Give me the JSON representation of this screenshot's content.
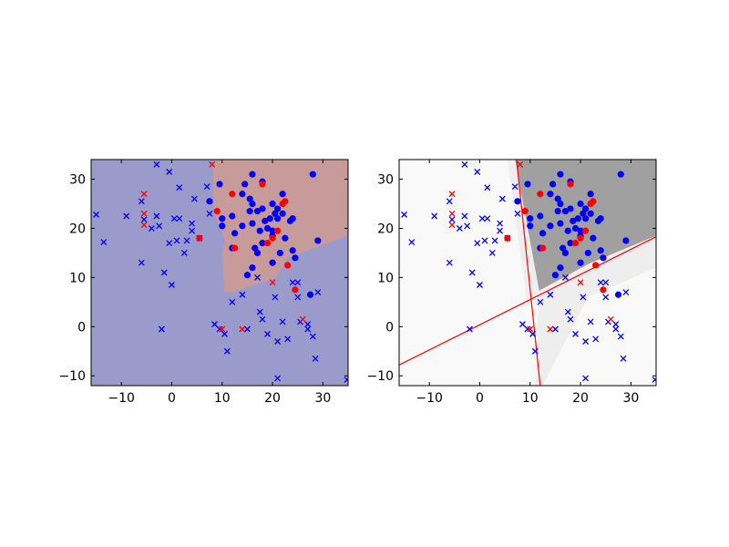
{
  "chart_data": [
    {
      "type": "scatter",
      "panel": "left",
      "xlim": [
        -16,
        35
      ],
      "ylim": [
        -12,
        34
      ],
      "xticks": [
        -10,
        0,
        10,
        20,
        30
      ],
      "yticks": [
        -10,
        0,
        10,
        20,
        30
      ],
      "xtick_labels": [
        "−10",
        "0",
        "10",
        "20",
        "30"
      ],
      "ytick_labels": [
        "−10",
        "0",
        "10",
        "20",
        "30"
      ],
      "background_color": "#9b9bcb",
      "region_color": "#c89b9b",
      "region": [
        [
          10,
          34
        ],
        [
          35,
          34
        ],
        [
          35,
          18.5
        ],
        [
          23,
          14
        ],
        [
          20.7,
          10
        ],
        [
          12,
          7
        ],
        [
          10.5,
          7
        ],
        [
          10,
          15
        ],
        [
          10.6,
          17.5
        ],
        [
          8.3,
          23.6
        ],
        [
          8.2,
          33.5
        ]
      ],
      "grid": false,
      "series": [
        {
          "marker": "x",
          "color": "#0000ff",
          "points": [
            [
              -15,
              22.8
            ],
            [
              -13.5,
              17.2
            ],
            [
              -9,
              22.5
            ],
            [
              -6,
              25.5
            ],
            [
              -6,
              13
            ],
            [
              -5.5,
              21.8
            ],
            [
              -4,
              20
            ],
            [
              -3,
              33
            ],
            [
              -3,
              22.5
            ],
            [
              -2.5,
              20.5
            ],
            [
              -2,
              -0.5
            ],
            [
              -1.5,
              11
            ],
            [
              -0.5,
              31.5
            ],
            [
              -0.5,
              17
            ],
            [
              0,
              8.5
            ],
            [
              0.5,
              22
            ],
            [
              1,
              17.5
            ],
            [
              1.5,
              28.3
            ],
            [
              1.5,
              22
            ],
            [
              2.5,
              15
            ],
            [
              3,
              17.5
            ],
            [
              4,
              21
            ],
            [
              4,
              19.5
            ],
            [
              4.5,
              26
            ],
            [
              5.5,
              18
            ],
            [
              7,
              28.5
            ],
            [
              7.5,
              23
            ],
            [
              8.5,
              0.5
            ],
            [
              9.5,
              -0.5
            ],
            [
              10.5,
              -1.5
            ],
            [
              11,
              -5
            ],
            [
              12,
              5
            ],
            [
              14,
              6.5
            ],
            [
              15,
              -0.5
            ],
            [
              17,
              10
            ],
            [
              17.5,
              3
            ],
            [
              18,
              1.5
            ],
            [
              19,
              -1.5
            ],
            [
              20.5,
              6
            ],
            [
              21,
              -3
            ],
            [
              21,
              -10.5
            ],
            [
              22,
              1
            ],
            [
              23,
              -2.5
            ],
            [
              24,
              9
            ],
            [
              25,
              9
            ],
            [
              25,
              6
            ],
            [
              25.5,
              1
            ],
            [
              27,
              0.5
            ],
            [
              27,
              -0.5
            ],
            [
              28,
              -2
            ],
            [
              28.5,
              -6.5
            ],
            [
              29,
              7
            ],
            [
              34.8,
              -10.8
            ]
          ]
        },
        {
          "marker": "x",
          "color": "#ff0000",
          "points": [
            [
              -5.5,
              27
            ],
            [
              -5.5,
              23
            ],
            [
              -5.5,
              20.7
            ],
            [
              8,
              33
            ],
            [
              10,
              -0.5
            ],
            [
              14,
              -0.5
            ],
            [
              20,
              9
            ],
            [
              26,
              1.5
            ]
          ]
        },
        {
          "marker": "o",
          "color": "#0000ff",
          "points": [
            [
              7.5,
              25.5
            ],
            [
              9.5,
              29
            ],
            [
              10,
              22
            ],
            [
              10,
              20.5
            ],
            [
              12,
              22.5
            ],
            [
              12,
              16
            ],
            [
              12.5,
              19
            ],
            [
              14,
              20.5
            ],
            [
              14,
              27
            ],
            [
              14.5,
              29
            ],
            [
              15,
              10.5
            ],
            [
              15.5,
              26
            ],
            [
              15.5,
              23.5
            ],
            [
              16,
              31
            ],
            [
              16,
              25
            ],
            [
              16,
              21
            ],
            [
              16,
              12
            ],
            [
              16.5,
              16
            ],
            [
              17,
              15
            ],
            [
              17,
              23.5
            ],
            [
              17.5,
              19.5
            ],
            [
              18,
              29.5
            ],
            [
              18,
              24
            ],
            [
              18,
              17
            ],
            [
              18.5,
              21.5
            ],
            [
              19,
              20
            ],
            [
              19.5,
              22
            ],
            [
              20,
              18.5
            ],
            [
              20,
              25
            ],
            [
              20,
              19.5
            ],
            [
              20,
              13
            ],
            [
              20.5,
              23
            ],
            [
              21,
              24
            ],
            [
              21,
              22
            ],
            [
              21.5,
              15
            ],
            [
              22,
              27
            ],
            [
              22,
              23
            ],
            [
              22.5,
              18
            ],
            [
              23.5,
              21.5
            ],
            [
              24,
              15.5
            ],
            [
              24,
              22
            ],
            [
              24.5,
              14
            ],
            [
              27.5,
              6.5
            ],
            [
              28,
              31
            ],
            [
              29,
              17.5
            ]
          ]
        },
        {
          "marker": "o",
          "color": "#ff0000",
          "points": [
            [
              5.5,
              18
            ],
            [
              9,
              23.5
            ],
            [
              12,
              27
            ],
            [
              12.5,
              16
            ],
            [
              18,
              29
            ],
            [
              19,
              17
            ],
            [
              20,
              18
            ],
            [
              21,
              19.5
            ],
            [
              22,
              25
            ],
            [
              22.5,
              25.5
            ],
            [
              23,
              12.5
            ],
            [
              24.5,
              7.5
            ]
          ]
        }
      ]
    },
    {
      "type": "scatter",
      "panel": "right",
      "xlim": [
        -16,
        35
      ],
      "ylim": [
        -12,
        34
      ],
      "xticks": [
        -10,
        0,
        10,
        20,
        30
      ],
      "yticks": [
        -10,
        0,
        10,
        20,
        30
      ],
      "xtick_labels": [
        "−10",
        "0",
        "10",
        "20",
        "30"
      ],
      "ytick_labels": [
        "−10",
        "0",
        "10",
        "20",
        "30"
      ],
      "background_color": "#f9f9f9",
      "dark_region_color": "#a0a0a0",
      "dark_region": [
        [
          7,
          34
        ],
        [
          35,
          34
        ],
        [
          35,
          18.5
        ],
        [
          21.5,
          12.7
        ],
        [
          11.8,
          7.3
        ]
      ],
      "boundary_color": "#ff0000",
      "lines": [
        [
          [
            7.3,
            34
          ],
          [
            12,
            -12
          ]
        ],
        [
          [
            -16,
            -7.8
          ],
          [
            35,
            18.3
          ]
        ]
      ],
      "grid": false,
      "series": [
        {
          "marker": "x",
          "color": "#0000ff",
          "points": [
            [
              -15,
              22.8
            ],
            [
              -13.5,
              17.2
            ],
            [
              -9,
              22.5
            ],
            [
              -6,
              25.5
            ],
            [
              -6,
              13
            ],
            [
              -5.5,
              21.8
            ],
            [
              -4,
              20
            ],
            [
              -3,
              33
            ],
            [
              -3,
              22.5
            ],
            [
              -2.5,
              20.5
            ],
            [
              -2,
              -0.5
            ],
            [
              -1.5,
              11
            ],
            [
              -0.5,
              31.5
            ],
            [
              -0.5,
              17
            ],
            [
              0,
              8.5
            ],
            [
              0.5,
              22
            ],
            [
              1,
              17.5
            ],
            [
              1.5,
              28.3
            ],
            [
              1.5,
              22
            ],
            [
              2.5,
              15
            ],
            [
              3,
              17.5
            ],
            [
              4,
              21
            ],
            [
              4,
              19.5
            ],
            [
              4.5,
              26
            ],
            [
              5.5,
              18
            ],
            [
              7,
              28.5
            ],
            [
              7.5,
              23
            ],
            [
              8.5,
              0.5
            ],
            [
              9.5,
              -0.5
            ],
            [
              10.5,
              -1.5
            ],
            [
              11,
              -5
            ],
            [
              12,
              5
            ],
            [
              14,
              6.5
            ],
            [
              15,
              -0.5
            ],
            [
              17,
              10
            ],
            [
              17.5,
              3
            ],
            [
              18,
              1.5
            ],
            [
              19,
              -1.5
            ],
            [
              20.5,
              6
            ],
            [
              21,
              -3
            ],
            [
              21,
              -10.5
            ],
            [
              22,
              1
            ],
            [
              23,
              -2.5
            ],
            [
              24,
              9
            ],
            [
              25,
              9
            ],
            [
              25,
              6
            ],
            [
              25.5,
              1
            ],
            [
              27,
              0.5
            ],
            [
              27,
              -0.5
            ],
            [
              28,
              -2
            ],
            [
              28.5,
              -6.5
            ],
            [
              29,
              7
            ],
            [
              34.8,
              -10.8
            ]
          ]
        },
        {
          "marker": "x",
          "color": "#ff0000",
          "points": [
            [
              -5.5,
              27
            ],
            [
              -5.5,
              23
            ],
            [
              -5.5,
              20.7
            ],
            [
              8,
              33
            ],
            [
              10,
              -0.5
            ],
            [
              14,
              -0.5
            ],
            [
              20,
              9
            ],
            [
              26,
              1.5
            ]
          ]
        },
        {
          "marker": "o",
          "color": "#0000ff",
          "points": [
            [
              7.5,
              25.5
            ],
            [
              9.5,
              29
            ],
            [
              10,
              22
            ],
            [
              10,
              20.5
            ],
            [
              12,
              22.5
            ],
            [
              12,
              16
            ],
            [
              12.5,
              19
            ],
            [
              14,
              20.5
            ],
            [
              14,
              27
            ],
            [
              14.5,
              29
            ],
            [
              15,
              10.5
            ],
            [
              15.5,
              26
            ],
            [
              15.5,
              23.5
            ],
            [
              16,
              31
            ],
            [
              16,
              25
            ],
            [
              16,
              21
            ],
            [
              16,
              12
            ],
            [
              16.5,
              16
            ],
            [
              17,
              15
            ],
            [
              17,
              23.5
            ],
            [
              17.5,
              19.5
            ],
            [
              18,
              29.5
            ],
            [
              18,
              24
            ],
            [
              18,
              17
            ],
            [
              18.5,
              21.5
            ],
            [
              19,
              20
            ],
            [
              19.5,
              22
            ],
            [
              20,
              18.5
            ],
            [
              20,
              25
            ],
            [
              20,
              19.5
            ],
            [
              20,
              13
            ],
            [
              20.5,
              23
            ],
            [
              21,
              24
            ],
            [
              21,
              22
            ],
            [
              21.5,
              15
            ],
            [
              22,
              27
            ],
            [
              22,
              23
            ],
            [
              22.5,
              18
            ],
            [
              23.5,
              21.5
            ],
            [
              24,
              15.5
            ],
            [
              24,
              22
            ],
            [
              24.5,
              14
            ],
            [
              27.5,
              6.5
            ],
            [
              28,
              31
            ],
            [
              29,
              17.5
            ]
          ]
        },
        {
          "marker": "o",
          "color": "#ff0000",
          "points": [
            [
              5.5,
              18
            ],
            [
              9,
              23.5
            ],
            [
              12,
              27
            ],
            [
              12.5,
              16
            ],
            [
              18,
              29
            ],
            [
              19,
              17
            ],
            [
              20,
              18
            ],
            [
              21,
              19.5
            ],
            [
              22,
              25
            ],
            [
              22.5,
              25.5
            ],
            [
              23,
              12.5
            ],
            [
              24.5,
              7.5
            ]
          ]
        }
      ]
    }
  ]
}
